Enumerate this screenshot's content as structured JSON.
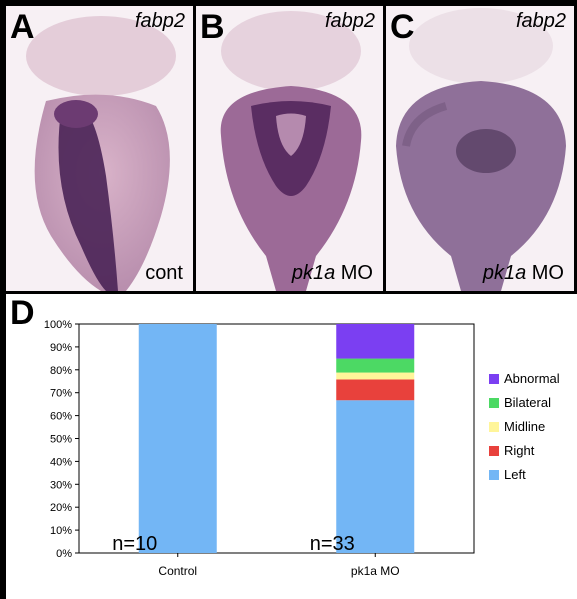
{
  "panels": [
    {
      "letter": "A",
      "gene": "fabp2",
      "condition_prefix": "",
      "condition_italic": "",
      "condition_suffix": "cont"
    },
    {
      "letter": "B",
      "gene": "fabp2",
      "condition_prefix": "",
      "condition_italic": "pk1a",
      "condition_suffix": " MO"
    },
    {
      "letter": "C",
      "gene": "fabp2",
      "condition_prefix": "",
      "condition_italic": "pk1a",
      "condition_suffix": " MO"
    }
  ],
  "chart_letter": "D",
  "colors": {
    "Abnormal": "#7b3ff2",
    "Bilateral": "#4cd964",
    "Midline": "#fff59a",
    "Right": "#e8413c",
    "Left": "#73b6f5",
    "stain_dark": "#3a1a4a",
    "stain_mid": "#8a5a8c",
    "stain_light": "#c9a7bf"
  },
  "chart_data": {
    "type": "bar",
    "stacked": true,
    "categories": [
      "Control",
      "pk1a MO"
    ],
    "series": [
      {
        "name": "Left",
        "values": [
          100,
          66.7
        ]
      },
      {
        "name": "Right",
        "values": [
          0,
          9.1
        ]
      },
      {
        "name": "Midline",
        "values": [
          0,
          3.0
        ]
      },
      {
        "name": "Bilateral",
        "values": [
          0,
          6.1
        ]
      },
      {
        "name": "Abnormal",
        "values": [
          0,
          15.1
        ]
      }
    ],
    "legend_order": [
      "Abnormal",
      "Bilateral",
      "Midline",
      "Right",
      "Left"
    ],
    "counts": [
      "n=10",
      "n=33"
    ],
    "yticks": [
      "0%",
      "10%",
      "20%",
      "30%",
      "40%",
      "50%",
      "60%",
      "70%",
      "80%",
      "90%",
      "100%"
    ],
    "ylim": [
      0,
      100
    ],
    "legend_position": "right",
    "grid": false
  }
}
